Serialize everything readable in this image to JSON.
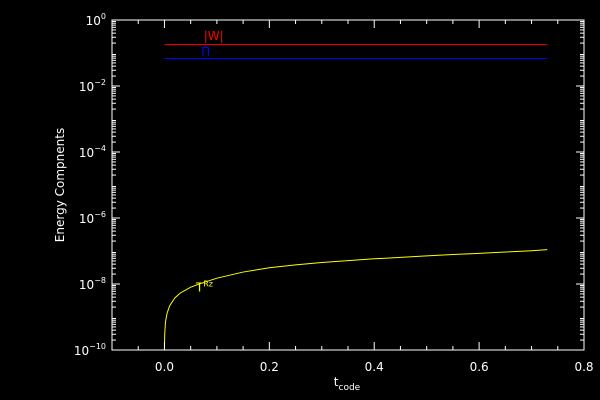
{
  "chart_data": {
    "type": "line",
    "background": "#000000",
    "foreground": "#ffffff",
    "xlabel": "t",
    "xlabel_sub": "code",
    "ylabel": "Energy Compnents",
    "xlim": [
      -0.1,
      0.8
    ],
    "ylim": [
      1e-10,
      1
    ],
    "yscale": "log",
    "grid": false,
    "x_ticks": [
      0.0,
      0.2,
      0.4,
      0.6,
      0.8
    ],
    "x_tick_labels": [
      "0.0",
      "0.2",
      "0.4",
      "0.6",
      "0.8"
    ],
    "y_ticks": [
      1e-10,
      1e-08,
      1e-06,
      0.0001,
      0.01,
      1
    ],
    "y_tick_labels": [
      {
        "base": "10",
        "exp": "−10"
      },
      {
        "base": "10",
        "exp": "−8"
      },
      {
        "base": "10",
        "exp": "−6"
      },
      {
        "base": "10",
        "exp": "−4"
      },
      {
        "base": "10",
        "exp": "−2"
      },
      {
        "base": "10",
        "exp": "0"
      }
    ],
    "series": [
      {
        "name": "|W|",
        "color": "#ff0000",
        "label_pos": [
          0.075,
          0.25
        ],
        "x": [
          0.0,
          0.73
        ],
        "y": [
          0.18,
          0.18
        ]
      },
      {
        "name": "Π",
        "color": "#0000ff",
        "label_pos": [
          0.07,
          0.082
        ],
        "x": [
          0.0,
          0.73
        ],
        "y": [
          0.068,
          0.068
        ]
      },
      {
        "name": "T",
        "sup": "Rz",
        "color": "#ffff00",
        "label_pos": [
          0.06,
          6e-09
        ],
        "x": [
          0.0,
          0.0005,
          0.002,
          0.005,
          0.01,
          0.02,
          0.03,
          0.05,
          0.07,
          0.1,
          0.15,
          0.2,
          0.25,
          0.3,
          0.35,
          0.4,
          0.45,
          0.5,
          0.55,
          0.6,
          0.65,
          0.7,
          0.73
        ],
        "y": [
          1e-10,
          3e-10,
          7e-10,
          1.3e-09,
          2.2e-09,
          3.8e-09,
          5.3e-09,
          8e-09,
          1.05e-08,
          1.5e-08,
          2.3e-08,
          3.1e-08,
          3.8e-08,
          4.5e-08,
          5.1e-08,
          5.8e-08,
          6.4e-08,
          7.1e-08,
          7.8e-08,
          8.5e-08,
          9.3e-08,
          1.02e-07,
          1.1e-07
        ]
      }
    ]
  }
}
